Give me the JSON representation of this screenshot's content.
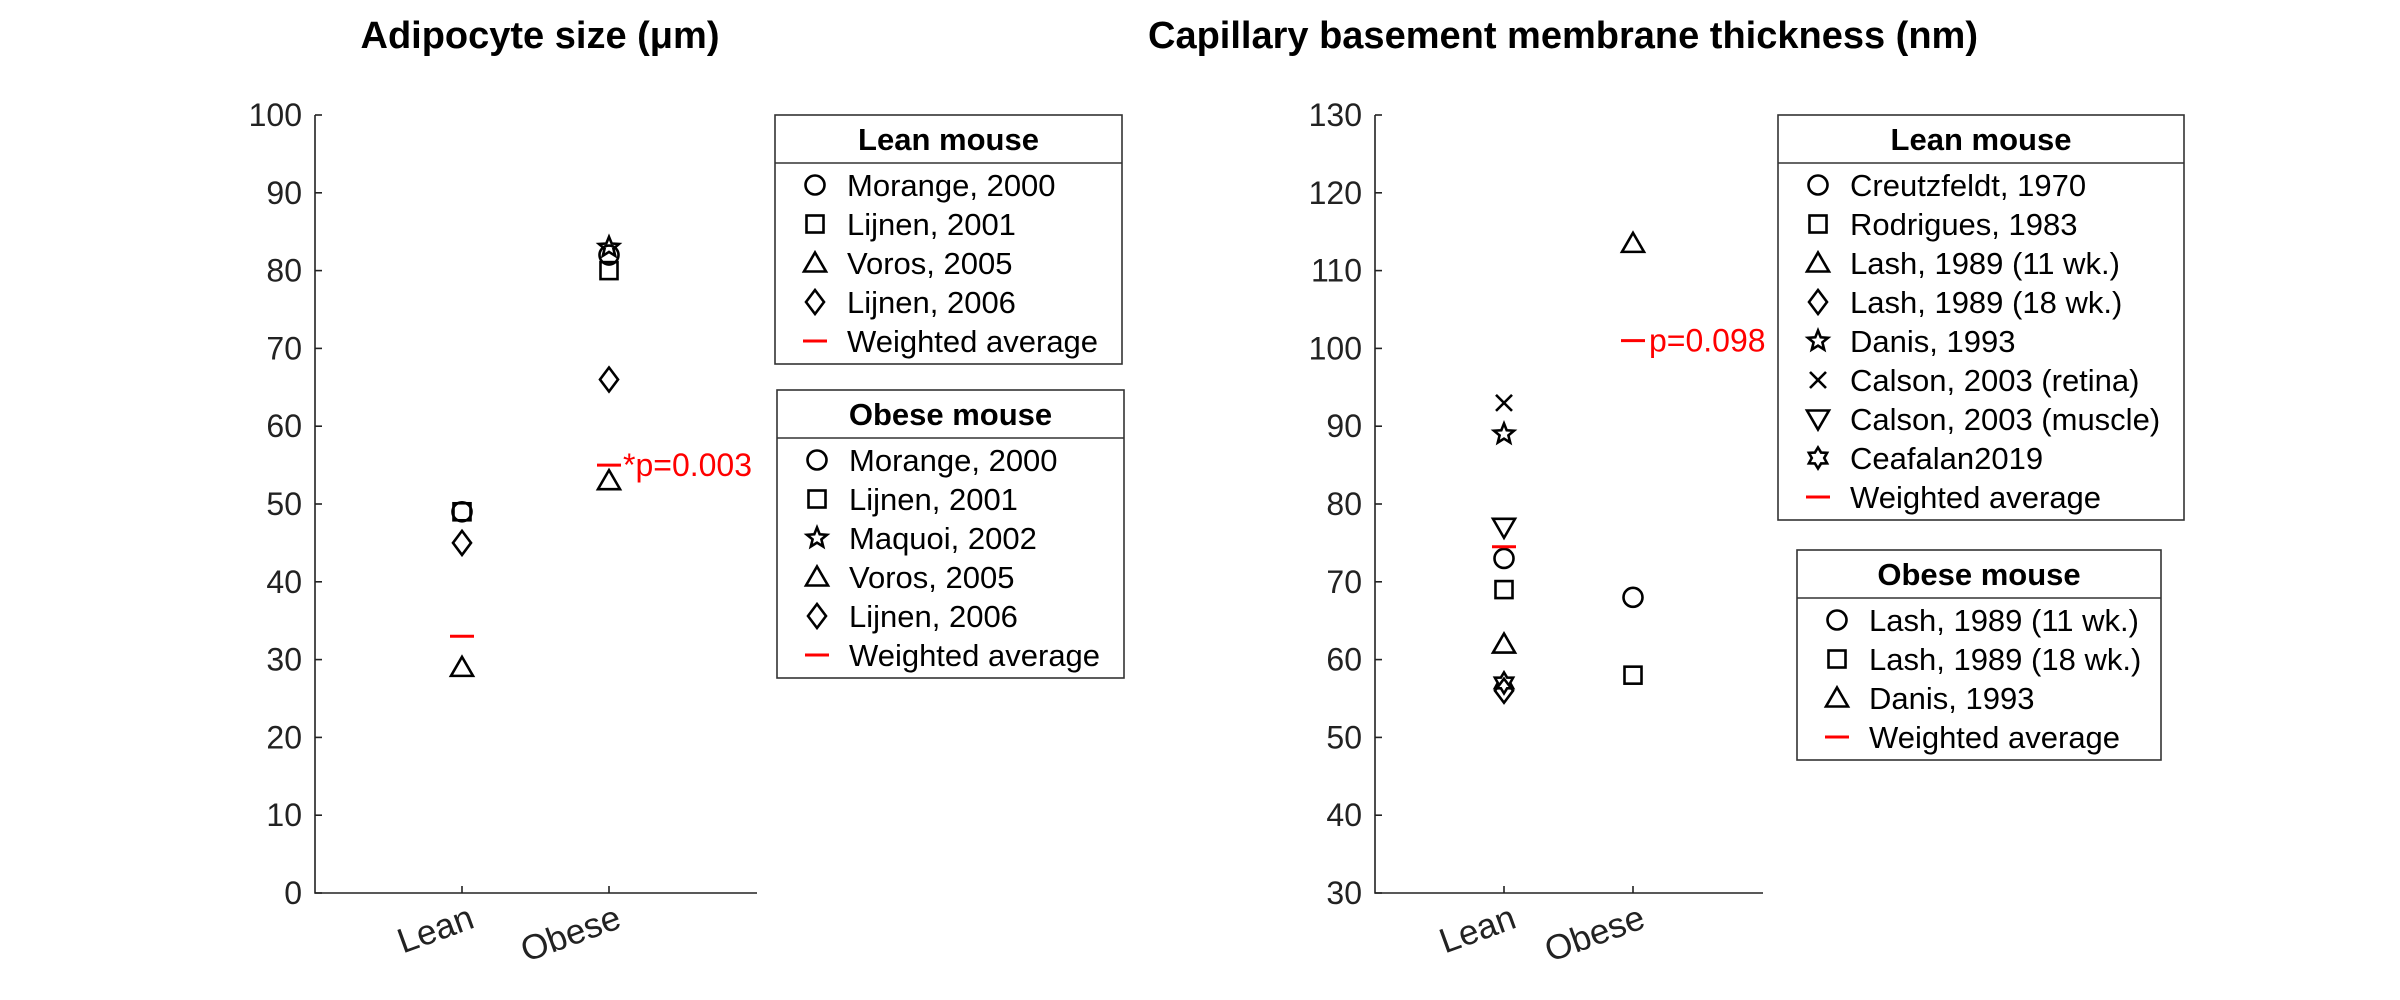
{
  "chart_data": [
    {
      "type": "scatter",
      "title": "Adipocyte size (μm)",
      "xlabel": "",
      "ylabel": "",
      "categories": [
        "Lean",
        "Obese"
      ],
      "ylim": [
        0,
        100
      ],
      "yticks": [
        "0",
        "10",
        "20",
        "30",
        "40",
        "50",
        "60",
        "70",
        "80",
        "90",
        "100"
      ],
      "grid": false,
      "legend_placement": "right",
      "series": [
        {
          "group": "Lean mouse",
          "name": "Morange, 2000",
          "marker": "circle",
          "points": [
            {
              "x": "Lean",
              "y": 49
            }
          ]
        },
        {
          "group": "Lean mouse",
          "name": "Lijnen, 2001",
          "marker": "square",
          "points": [
            {
              "x": "Lean",
              "y": 49
            }
          ]
        },
        {
          "group": "Lean mouse",
          "name": "Voros, 2005",
          "marker": "triangle",
          "points": [
            {
              "x": "Lean",
              "y": 29
            }
          ]
        },
        {
          "group": "Lean mouse",
          "name": "Lijnen, 2006",
          "marker": "diamond",
          "points": [
            {
              "x": "Lean",
              "y": 45
            }
          ]
        },
        {
          "group": "Lean mouse",
          "name": "Weighted average",
          "marker": "dash",
          "points": [
            {
              "x": "Lean",
              "y": 33
            }
          ]
        },
        {
          "group": "Obese mouse",
          "name": "Morange, 2000",
          "marker": "circle",
          "points": [
            {
              "x": "Obese",
              "y": 82
            }
          ]
        },
        {
          "group": "Obese mouse",
          "name": "Lijnen, 2001",
          "marker": "square",
          "points": [
            {
              "x": "Obese",
              "y": 80
            }
          ]
        },
        {
          "group": "Obese mouse",
          "name": "Maquoi, 2002",
          "marker": "star5",
          "points": [
            {
              "x": "Obese",
              "y": 83
            }
          ]
        },
        {
          "group": "Obese mouse",
          "name": "Voros, 2005",
          "marker": "triangle",
          "points": [
            {
              "x": "Obese",
              "y": 53
            }
          ]
        },
        {
          "group": "Obese mouse",
          "name": "Lijnen, 2006",
          "marker": "diamond",
          "points": [
            {
              "x": "Obese",
              "y": 66
            }
          ]
        },
        {
          "group": "Obese mouse",
          "name": "Weighted average",
          "marker": "dash",
          "points": [
            {
              "x": "Obese",
              "y": 55
            }
          ]
        }
      ],
      "annotations": [
        {
          "x": "Obese",
          "y": 55,
          "text": "*p=0.003"
        }
      ],
      "legends": [
        {
          "title": "Lean mouse",
          "entries": [
            {
              "label": "Morange, 2000",
              "marker": "circle"
            },
            {
              "label": "Lijnen, 2001",
              "marker": "square"
            },
            {
              "label": "Voros, 2005",
              "marker": "triangle"
            },
            {
              "label": "Lijnen, 2006",
              "marker": "diamond"
            },
            {
              "label": "Weighted average",
              "marker": "dash"
            }
          ]
        },
        {
          "title": "Obese mouse",
          "entries": [
            {
              "label": "Morange, 2000",
              "marker": "circle"
            },
            {
              "label": "Lijnen, 2001",
              "marker": "square"
            },
            {
              "label": "Maquoi, 2002",
              "marker": "star5"
            },
            {
              "label": "Voros, 2005",
              "marker": "triangle"
            },
            {
              "label": "Lijnen, 2006",
              "marker": "diamond"
            },
            {
              "label": "Weighted average",
              "marker": "dash"
            }
          ]
        }
      ]
    },
    {
      "type": "scatter",
      "title": "Capillary basement membrane thickness (nm)",
      "xlabel": "",
      "ylabel": "",
      "categories": [
        "Lean",
        "Obese"
      ],
      "ylim": [
        30,
        130
      ],
      "yticks": [
        "30",
        "40",
        "50",
        "60",
        "70",
        "80",
        "90",
        "100",
        "110",
        "120",
        "130"
      ],
      "grid": false,
      "legend_placement": "right",
      "series": [
        {
          "group": "Lean mouse",
          "name": "Creutzfeldt, 1970",
          "marker": "circle",
          "points": [
            {
              "x": "Lean",
              "y": 73
            }
          ]
        },
        {
          "group": "Lean mouse",
          "name": "Rodrigues, 1983",
          "marker": "square",
          "points": [
            {
              "x": "Lean",
              "y": 69
            }
          ]
        },
        {
          "group": "Lean mouse",
          "name": "Lash, 1989 (11 wk.)",
          "marker": "triangle",
          "points": [
            {
              "x": "Lean",
              "y": 62
            }
          ]
        },
        {
          "group": "Lean mouse",
          "name": "Lash, 1989 (18 wk.)",
          "marker": "diamond",
          "points": [
            {
              "x": "Lean",
              "y": 56
            }
          ]
        },
        {
          "group": "Lean mouse",
          "name": "Danis, 1993",
          "marker": "star5",
          "points": [
            {
              "x": "Lean",
              "y": 89
            }
          ]
        },
        {
          "group": "Lean mouse",
          "name": "Calson, 2003 (retina)",
          "marker": "cross",
          "points": [
            {
              "x": "Lean",
              "y": 93
            }
          ]
        },
        {
          "group": "Lean mouse",
          "name": "Calson, 2003 (muscle)",
          "marker": "triangle-down",
          "points": [
            {
              "x": "Lean",
              "y": 77
            }
          ]
        },
        {
          "group": "Lean mouse",
          "name": "Ceafalan2019",
          "marker": "hexagram",
          "points": [
            {
              "x": "Lean",
              "y": 57
            }
          ]
        },
        {
          "group": "Lean mouse",
          "name": "Weighted average",
          "marker": "dash",
          "points": [
            {
              "x": "Lean",
              "y": 74.5
            }
          ]
        },
        {
          "group": "Obese mouse",
          "name": "Lash, 1989 (11 wk.)",
          "marker": "circle",
          "points": [
            {
              "x": "Obese",
              "y": 68
            }
          ]
        },
        {
          "group": "Obese mouse",
          "name": "Lash, 1989 (18 wk.)",
          "marker": "square",
          "points": [
            {
              "x": "Obese",
              "y": 58
            }
          ]
        },
        {
          "group": "Obese mouse",
          "name": "Danis, 1993",
          "marker": "triangle",
          "points": [
            {
              "x": "Obese",
              "y": 113.5
            }
          ]
        },
        {
          "group": "Obese mouse",
          "name": "Weighted average",
          "marker": "dash",
          "points": [
            {
              "x": "Obese",
              "y": 101
            }
          ]
        }
      ],
      "annotations": [
        {
          "x": "Obese",
          "y": 101,
          "text": "p=0.098"
        }
      ],
      "legends": [
        {
          "title": "Lean mouse",
          "entries": [
            {
              "label": "Creutzfeldt, 1970",
              "marker": "circle"
            },
            {
              "label": "Rodrigues, 1983",
              "marker": "square"
            },
            {
              "label": "Lash, 1989 (11 wk.)",
              "marker": "triangle"
            },
            {
              "label": "Lash, 1989 (18 wk.)",
              "marker": "diamond"
            },
            {
              "label": "Danis, 1993",
              "marker": "star5"
            },
            {
              "label": "Calson, 2003 (retina)",
              "marker": "cross"
            },
            {
              "label": "Calson, 2003 (muscle)",
              "marker": "triangle-down"
            },
            {
              "label": "Ceafalan2019",
              "marker": "hexagram"
            },
            {
              "label": "Weighted average",
              "marker": "dash"
            }
          ]
        },
        {
          "title": "Obese mouse",
          "entries": [
            {
              "label": "Lash, 1989 (11 wk.)",
              "marker": "circle"
            },
            {
              "label": "Lash, 1989 (18 wk.)",
              "marker": "square"
            },
            {
              "label": "Danis, 1993",
              "marker": "triangle"
            },
            {
              "label": "Weighted average",
              "marker": "dash"
            }
          ]
        }
      ]
    }
  ],
  "colors": {
    "markers": "#000000",
    "weighted_average": "#ff0000",
    "axis": "#222222"
  }
}
